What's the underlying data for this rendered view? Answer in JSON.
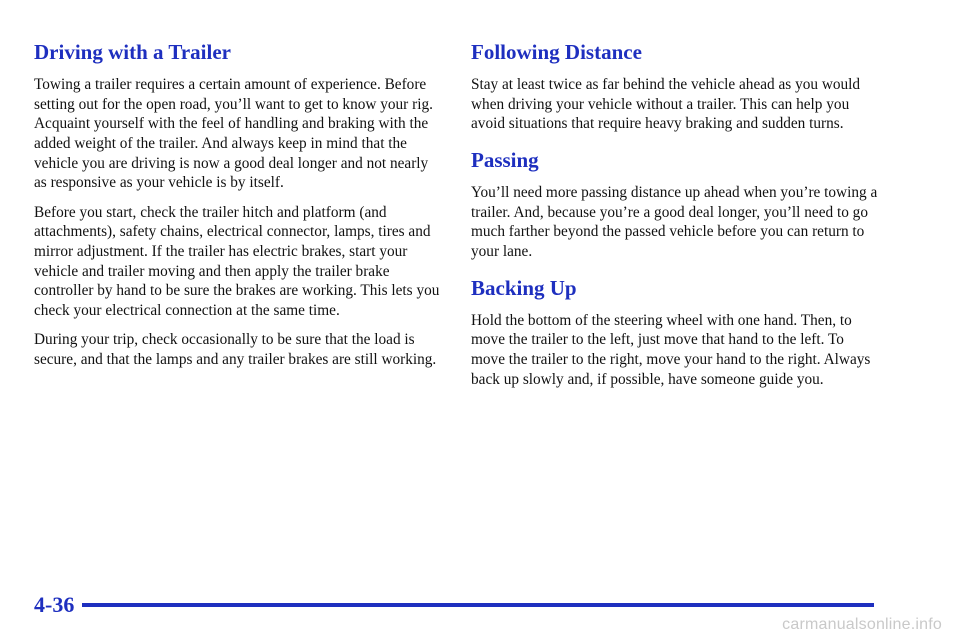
{
  "left": {
    "heading": "Driving with a Trailer",
    "paragraphs": [
      "Towing a trailer requires a certain amount of experience. Before setting out for the open road, you’ll want to get to know your rig. Acquaint yourself with the feel of handling and braking with the added weight of the trailer. And always keep in mind that the vehicle you are driving is now a good deal longer and not nearly as responsive as your vehicle is by itself.",
      "Before you start, check the trailer hitch and platform (and attachments), safety chains, electrical connector, lamps, tires and mirror adjustment. If the trailer has electric brakes, start your vehicle and trailer moving and then apply the trailer brake controller by hand to be sure the brakes are working. This lets you check your electrical connection at the same time.",
      "During your trip, check occasionally to be sure that the load is secure, and that the lamps and any trailer brakes are still working."
    ]
  },
  "right": {
    "sections": [
      {
        "heading": "Following Distance",
        "text": "Stay at least twice as far behind the vehicle ahead as you would when driving your vehicle without a trailer. This can help you avoid situations that require heavy braking and sudden turns."
      },
      {
        "heading": "Passing",
        "text": "You’ll need more passing distance up ahead when you’re towing a trailer. And, because you’re a good deal longer, you’ll need to go much farther beyond the passed vehicle before you can return to your lane."
      },
      {
        "heading": "Backing Up",
        "text": "Hold the bottom of the steering wheel with one hand. Then, to move the trailer to the left, just move that hand to the left. To move the trailer to the right, move your hand to the right. Always back up slowly and, if possible, have someone guide you."
      }
    ]
  },
  "footer": {
    "page_number": "4-36",
    "watermark": "carmanualsonline.info"
  },
  "colors": {
    "accent": "#1e2fbf",
    "text": "#111111",
    "watermark": "#c9c9c9"
  }
}
